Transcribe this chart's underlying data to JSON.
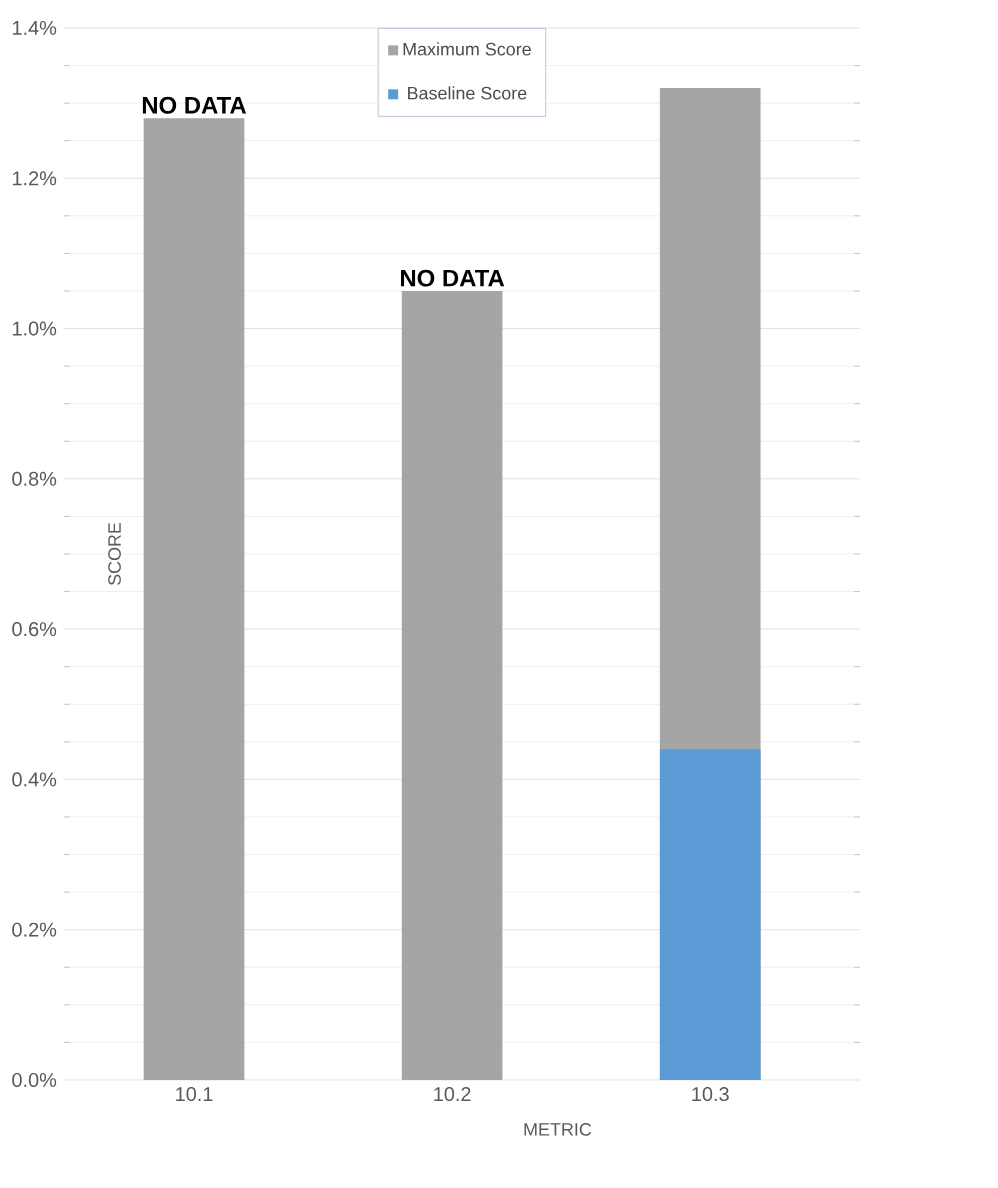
{
  "chart_data": {
    "type": "bar",
    "xlabel": "METRIC",
    "ylabel": "SCORE",
    "categories": [
      "10.1",
      "10.2",
      "10.3"
    ],
    "series": [
      {
        "name": "Maximum Score",
        "color": "#a5a5a5",
        "values": [
          1.28,
          1.05,
          1.32
        ]
      },
      {
        "name": "Baseline Score",
        "color": "#5b9bd5",
        "values": [
          null,
          null,
          0.44
        ]
      }
    ],
    "ylim": [
      0,
      1.4
    ],
    "yticks": [
      {
        "value": 0,
        "label": "0.0%"
      },
      {
        "value": 0.2,
        "label": "0.2%"
      },
      {
        "value": 0.4,
        "label": "0.4%"
      },
      {
        "value": 0.6,
        "label": "0.6%"
      },
      {
        "value": 0.8,
        "label": "0.8%"
      },
      {
        "value": 1.0,
        "label": "1.0%"
      },
      {
        "value": 1.2,
        "label": "1.2%"
      },
      {
        "value": 1.4,
        "label": "1.4%"
      }
    ],
    "grid": "y",
    "legend": "top",
    "annotations": [
      {
        "text": "NO DATA",
        "x": "10.1",
        "y": 1.28
      },
      {
        "text": "NO DATA",
        "x": "10.2",
        "y": 1.05
      }
    ]
  }
}
